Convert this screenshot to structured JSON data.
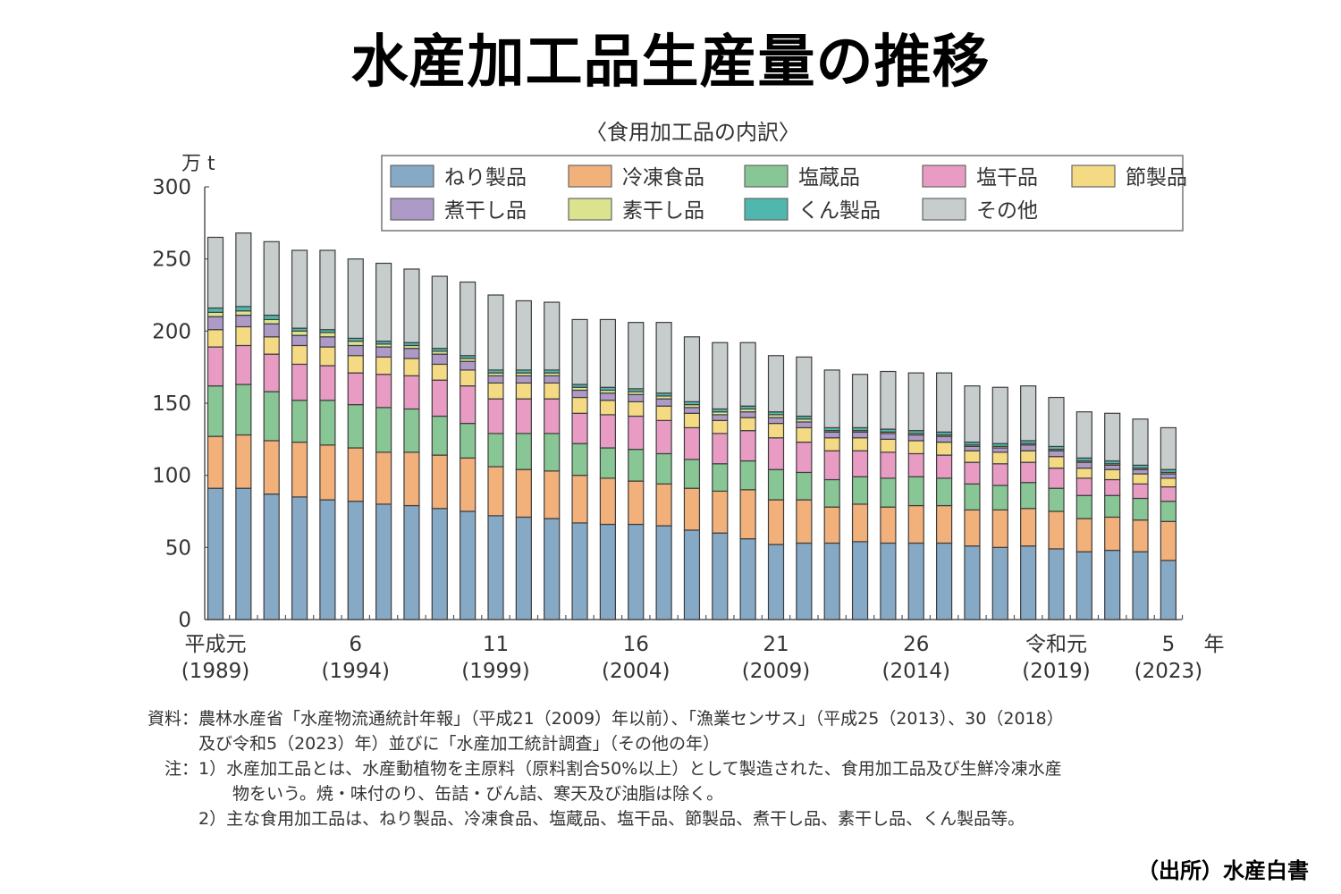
{
  "title": "水産加工品生産量の推移",
  "source_label": "（出所）水産白書",
  "notes": {
    "line1": "資料：農林水産省「水産物流通統計年報」（平成21（2009）年以前）、「漁業センサス」（平成25（2013）、30（2018）",
    "line2": "　　　及び令和5（2023）年）並びに「水産加工統計調査」（その他の年）",
    "line3": "　注：1）水産加工品とは、水産動植物を主原料（原料割合50%以上）として製造された、食用加工品及び生鮮冷凍水産",
    "line4": "　　　　　物をいう。焼・味付のり、缶詰・びん詰、寒天及び油脂は除く。",
    "line5": "　　　2）主な食用加工品は、ねり製品、冷凍食品、塩蔵品、塩干品、節製品、煮干し品、素干し品、くん製品等。"
  },
  "chart_data": {
    "type": "bar",
    "stacked": true,
    "title": "〈食用加工品の内訳〉",
    "ylabel": "万 t",
    "xlabel": "年",
    "ylim": [
      0,
      300
    ],
    "yticks": [
      0,
      50,
      100,
      150,
      200,
      250,
      300
    ],
    "grid": false,
    "legend_position": "top-right",
    "categories": [
      "1989",
      "1990",
      "1991",
      "1992",
      "1993",
      "1994",
      "1995",
      "1996",
      "1997",
      "1998",
      "1999",
      "2000",
      "2001",
      "2002",
      "2003",
      "2004",
      "2005",
      "2006",
      "2007",
      "2008",
      "2009",
      "2010",
      "2011",
      "2012",
      "2013",
      "2014",
      "2015",
      "2016",
      "2017",
      "2018",
      "2019",
      "2020",
      "2021",
      "2022",
      "2023"
    ],
    "x_tick_labels": [
      {
        "index": 0,
        "top": "平成元",
        "bottom": "(1989)"
      },
      {
        "index": 5,
        "top": "6",
        "bottom": "(1994)"
      },
      {
        "index": 10,
        "top": "11",
        "bottom": "(1999)"
      },
      {
        "index": 15,
        "top": "16",
        "bottom": "(2004)"
      },
      {
        "index": 20,
        "top": "21",
        "bottom": "(2009)"
      },
      {
        "index": 25,
        "top": "26",
        "bottom": "(2014)"
      },
      {
        "index": 30,
        "top": "令和元",
        "bottom": "(2019)"
      },
      {
        "index": 34,
        "top": "5",
        "bottom": "(2023)"
      }
    ],
    "series": [
      {
        "name": "ねり製品",
        "color": "#86a9c6",
        "values": [
          91,
          91,
          87,
          85,
          83,
          82,
          80,
          79,
          77,
          75,
          72,
          71,
          70,
          67,
          66,
          66,
          65,
          62,
          60,
          56,
          52,
          53,
          53,
          54,
          53,
          53,
          53,
          51,
          50,
          51,
          49,
          47,
          48,
          47,
          41
        ]
      },
      {
        "name": "冷凍食品",
        "color": "#f2b07a",
        "values": [
          36,
          37,
          37,
          38,
          38,
          37,
          36,
          37,
          37,
          37,
          34,
          33,
          33,
          33,
          32,
          30,
          29,
          29,
          29,
          34,
          31,
          30,
          25,
          26,
          25,
          26,
          26,
          25,
          26,
          26,
          26,
          23,
          23,
          22,
          27
        ]
      },
      {
        "name": "塩蔵品",
        "color": "#88c795",
        "values": [
          35,
          35,
          34,
          29,
          31,
          30,
          31,
          30,
          27,
          24,
          23,
          25,
          26,
          22,
          21,
          22,
          21,
          20,
          19,
          20,
          21,
          19,
          19,
          19,
          20,
          20,
          19,
          18,
          17,
          18,
          16,
          16,
          15,
          15,
          14
        ]
      },
      {
        "name": "塩干品",
        "color": "#e89cc4",
        "values": [
          27,
          27,
          26,
          25,
          24,
          22,
          23,
          23,
          25,
          26,
          24,
          24,
          24,
          21,
          23,
          23,
          23,
          22,
          21,
          21,
          22,
          21,
          20,
          18,
          18,
          16,
          16,
          15,
          15,
          14,
          14,
          12,
          11,
          10,
          10
        ]
      },
      {
        "name": "節製品",
        "color": "#f5da84",
        "values": [
          12,
          13,
          12,
          13,
          13,
          12,
          12,
          12,
          11,
          11,
          11,
          11,
          11,
          11,
          10,
          10,
          10,
          10,
          9,
          9,
          10,
          10,
          9,
          9,
          9,
          9,
          9,
          8,
          8,
          8,
          8,
          7,
          7,
          7,
          6
        ]
      },
      {
        "name": "煮干し品",
        "color": "#ae9ac7",
        "values": [
          9,
          8,
          9,
          7,
          7,
          7,
          7,
          7,
          7,
          6,
          5,
          5,
          5,
          5,
          5,
          5,
          5,
          4,
          4,
          4,
          4,
          4,
          4,
          4,
          4,
          4,
          4,
          3,
          3,
          4,
          4,
          4,
          3,
          3,
          3
        ]
      },
      {
        "name": "素干し品",
        "color": "#dbe38f",
        "values": [
          3,
          3,
          3,
          3,
          3,
          3,
          2,
          2,
          2,
          2,
          2,
          2,
          2,
          2,
          2,
          2,
          2,
          2,
          2,
          2,
          2,
          2,
          1,
          1,
          1,
          1,
          1,
          1,
          1,
          1,
          1,
          1,
          1,
          1,
          1
        ]
      },
      {
        "name": "くん製品",
        "color": "#4fb7ad",
        "values": [
          3,
          3,
          3,
          2,
          2,
          2,
          2,
          2,
          2,
          2,
          2,
          2,
          2,
          2,
          2,
          2,
          2,
          2,
          2,
          2,
          2,
          2,
          2,
          2,
          2,
          2,
          2,
          2,
          2,
          2,
          2,
          2,
          2,
          2,
          2
        ]
      },
      {
        "name": "その他",
        "color": "#c6cdcc",
        "values": [
          49,
          51,
          51,
          54,
          55,
          55,
          54,
          51,
          50,
          51,
          52,
          48,
          47,
          45,
          47,
          46,
          49,
          45,
          46,
          44,
          39,
          41,
          40,
          37,
          40,
          40,
          41,
          39,
          39,
          38,
          34,
          32,
          33,
          32,
          29
        ]
      }
    ],
    "legend_order": [
      "ねり製品",
      "冷凍食品",
      "塩蔵品",
      "塩干品",
      "節製品",
      "煮干し品",
      "素干し品",
      "くん製品",
      "その他"
    ]
  }
}
